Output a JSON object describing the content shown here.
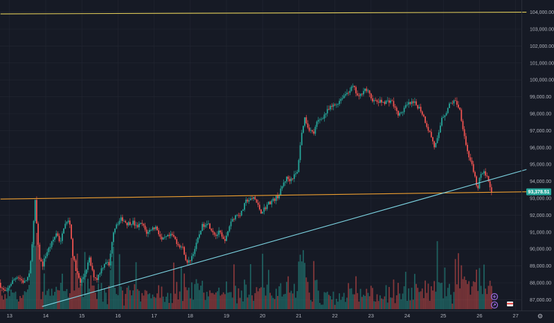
{
  "chart_data": {
    "type": "candlestick",
    "title": "",
    "xlabel": "",
    "ylabel": "",
    "ylim": [
      86600,
      104200
    ],
    "y_ticks": [
      "87,000.00",
      "88,000.00",
      "89,000.00",
      "90,000.00",
      "91,000.00",
      "92,000.00",
      "93,000.00",
      "94,000.00",
      "95,000.00",
      "96,000.00",
      "97,000.00",
      "98,000.00",
      "99,000.00",
      "100,000.00",
      "101,000.00",
      "102,000.00",
      "103,000.00",
      "104,000.00"
    ],
    "x_ticks": [
      "13",
      "14",
      "15",
      "16",
      "17",
      "18",
      "19",
      "20",
      "21",
      "22",
      "23",
      "24",
      "25",
      "26",
      "27"
    ],
    "last_price": 93378.51,
    "last_price_label": "93,378.51",
    "grid": true,
    "colors": {
      "background": "#161a25",
      "grid": "#232733",
      "up": "#26a69a",
      "down": "#ef5350",
      "price_tag": "#26a69a",
      "yellow_line": "#e6d05a",
      "orange_line": "#f0a030",
      "cyan_line": "#7fd8e6"
    },
    "trendlines": [
      {
        "name": "upper-resistance",
        "color": "yellow",
        "from": {
          "day": 12.75,
          "price": 103900
        },
        "to": {
          "day": 27.3,
          "price": 104000
        }
      },
      {
        "name": "horizontal-support",
        "color": "orange",
        "from": {
          "day": 12.75,
          "price": 92950
        },
        "to": {
          "day": 27.3,
          "price": 93380
        }
      },
      {
        "name": "rising-trendline",
        "color": "cyan",
        "from": {
          "day": 13.9,
          "price": 86600
        },
        "to": {
          "day": 27.3,
          "price": 94700
        }
      }
    ],
    "path_points": [
      [
        12.75,
        88000
      ],
      [
        12.85,
        87600
      ],
      [
        12.95,
        87400
      ],
      [
        13.05,
        87900
      ],
      [
        13.25,
        88400
      ],
      [
        13.45,
        88000
      ],
      [
        13.6,
        88500
      ],
      [
        13.75,
        92800
      ],
      [
        13.85,
        89600
      ],
      [
        13.95,
        89000
      ],
      [
        14.05,
        89700
      ],
      [
        14.2,
        90300
      ],
      [
        14.35,
        91000
      ],
      [
        14.45,
        90300
      ],
      [
        14.55,
        91400
      ],
      [
        14.7,
        91700
      ],
      [
        14.8,
        89500
      ],
      [
        14.9,
        88600
      ],
      [
        15.0,
        88000
      ],
      [
        15.1,
        88400
      ],
      [
        15.25,
        89400
      ],
      [
        15.35,
        88500
      ],
      [
        15.45,
        88200
      ],
      [
        15.55,
        88700
      ],
      [
        15.7,
        89300
      ],
      [
        15.8,
        89000
      ],
      [
        15.9,
        91000
      ],
      [
        16.0,
        91500
      ],
      [
        16.15,
        91800
      ],
      [
        16.3,
        91500
      ],
      [
        16.45,
        91600
      ],
      [
        16.55,
        91300
      ],
      [
        16.7,
        91500
      ],
      [
        16.85,
        90900
      ],
      [
        16.95,
        91200
      ],
      [
        17.1,
        91300
      ],
      [
        17.25,
        90500
      ],
      [
        17.4,
        90700
      ],
      [
        17.55,
        90800
      ],
      [
        17.7,
        90300
      ],
      [
        17.85,
        90000
      ],
      [
        17.95,
        89100
      ],
      [
        18.05,
        89400
      ],
      [
        18.2,
        90200
      ],
      [
        18.35,
        91300
      ],
      [
        18.5,
        91600
      ],
      [
        18.65,
        91100
      ],
      [
        18.75,
        90800
      ],
      [
        18.85,
        91000
      ],
      [
        18.95,
        90500
      ],
      [
        19.05,
        90700
      ],
      [
        19.15,
        91600
      ],
      [
        19.3,
        92000
      ],
      [
        19.45,
        92100
      ],
      [
        19.6,
        92900
      ],
      [
        19.75,
        92900
      ],
      [
        19.8,
        93100
      ],
      [
        19.9,
        92600
      ],
      [
        20.0,
        92200
      ],
      [
        20.1,
        92400
      ],
      [
        20.2,
        92700
      ],
      [
        20.35,
        92900
      ],
      [
        20.5,
        93200
      ],
      [
        20.6,
        93800
      ],
      [
        20.7,
        94200
      ],
      [
        20.8,
        94100
      ],
      [
        20.9,
        94300
      ],
      [
        21.0,
        94500
      ],
      [
        21.1,
        96500
      ],
      [
        21.2,
        97800
      ],
      [
        21.3,
        97200
      ],
      [
        21.45,
        96800
      ],
      [
        21.55,
        97500
      ],
      [
        21.7,
        97800
      ],
      [
        21.85,
        98200
      ],
      [
        21.95,
        98400
      ],
      [
        22.1,
        98600
      ],
      [
        22.25,
        99000
      ],
      [
        22.4,
        99300
      ],
      [
        22.55,
        99600
      ],
      [
        22.7,
        98900
      ],
      [
        22.85,
        99500
      ],
      [
        22.95,
        99300
      ],
      [
        23.05,
        98900
      ],
      [
        23.15,
        98700
      ],
      [
        23.3,
        98700
      ],
      [
        23.45,
        98700
      ],
      [
        23.6,
        98800
      ],
      [
        23.75,
        98100
      ],
      [
        23.85,
        97900
      ],
      [
        23.95,
        98300
      ],
      [
        24.1,
        98600
      ],
      [
        24.25,
        98600
      ],
      [
        24.4,
        98300
      ],
      [
        24.5,
        97800
      ],
      [
        24.6,
        97200
      ],
      [
        24.7,
        96700
      ],
      [
        24.8,
        96000
      ],
      [
        24.9,
        96600
      ],
      [
        25.0,
        97800
      ],
      [
        25.1,
        98000
      ],
      [
        25.2,
        98500
      ],
      [
        25.3,
        98700
      ],
      [
        25.4,
        98700
      ],
      [
        25.5,
        98200
      ],
      [
        25.6,
        97000
      ],
      [
        25.7,
        95800
      ],
      [
        25.8,
        95200
      ],
      [
        25.9,
        94300
      ],
      [
        26.0,
        93500
      ],
      [
        26.05,
        94300
      ],
      [
        26.15,
        94500
      ],
      [
        26.25,
        94400
      ],
      [
        26.35,
        93400
      ]
    ]
  }
}
